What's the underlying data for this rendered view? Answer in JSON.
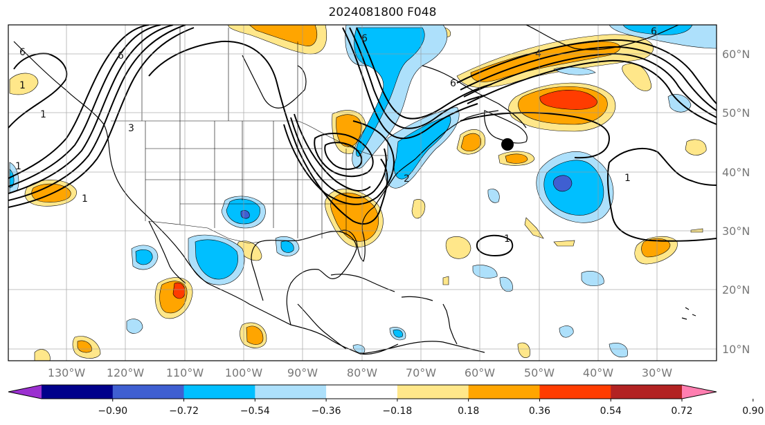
{
  "title": "2024081800 F048",
  "longitude_labels": [
    "130°W",
    "120°W",
    "110°W",
    "100°W",
    "90°W",
    "80°W",
    "70°W",
    "60°W",
    "50°W",
    "40°W",
    "30°W"
  ],
  "latitude_labels": [
    "60°N",
    "50°N",
    "40°N",
    "30°N",
    "20°N",
    "10°N"
  ],
  "colorbar": {
    "tick_labels": [
      "−0.90",
      "−0.72",
      "−0.54",
      "−0.36",
      "−0.18",
      "0.18",
      "0.36",
      "0.54",
      "0.72",
      "0.90"
    ],
    "colors": [
      "#9b30d0",
      "#00008b",
      "#3f5fd1",
      "#00bfff",
      "#ade0fb",
      "#ffffff",
      "#ffe78a",
      "#ffa500",
      "#ff3c00",
      "#b22222",
      "#ff7eb0"
    ]
  },
  "contour_labels": [
    "6",
    "6",
    "3",
    "1",
    "1",
    "1",
    "1",
    "2",
    "6",
    "4",
    "6",
    "6",
    "1",
    "1"
  ],
  "marker": "black-dot"
}
